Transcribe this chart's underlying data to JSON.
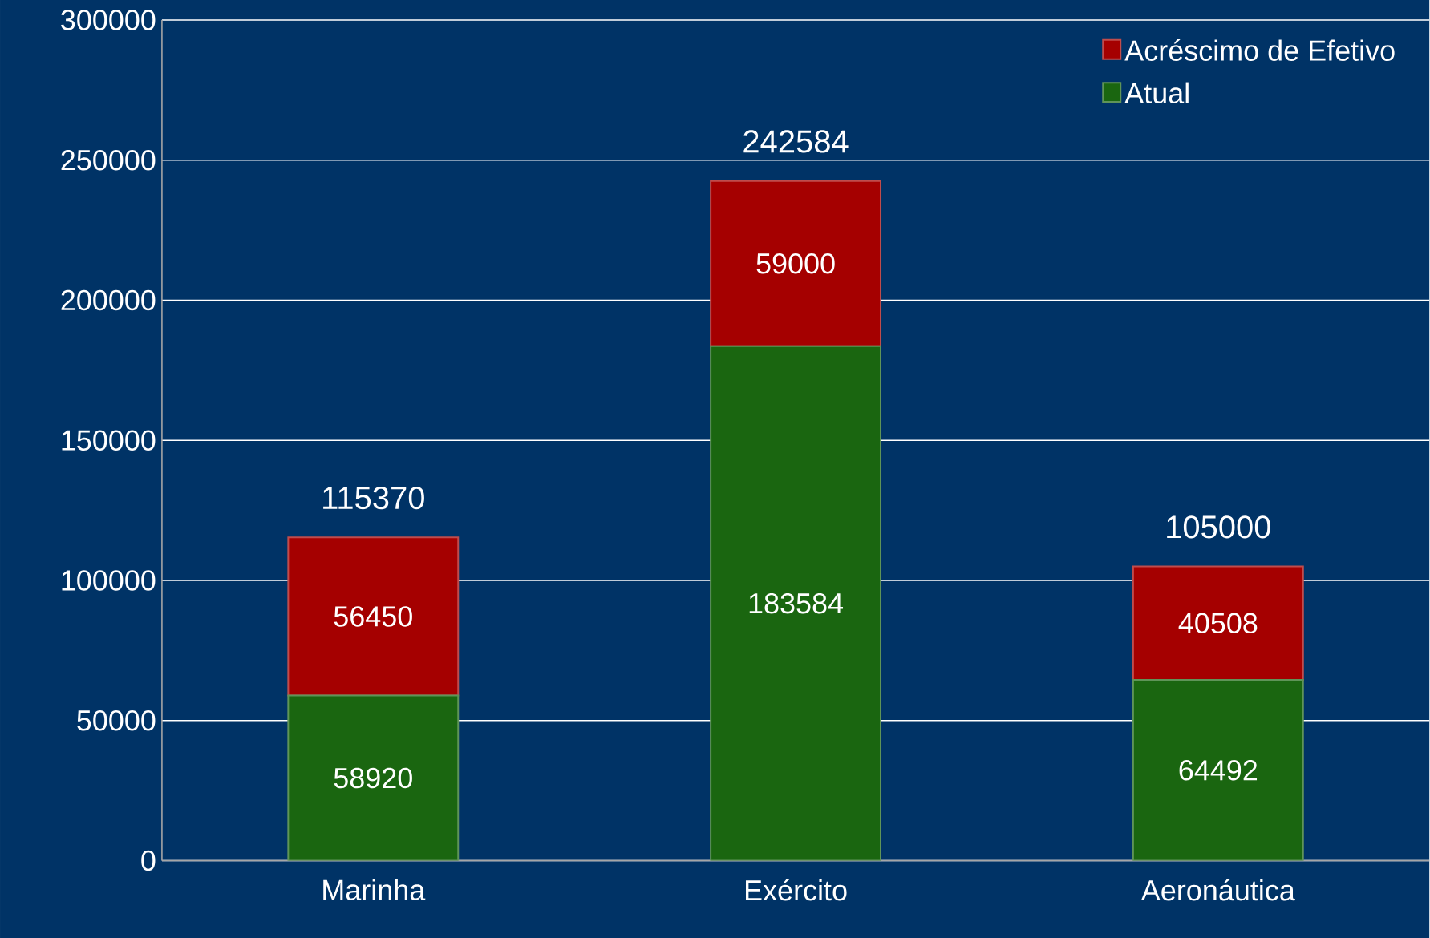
{
  "chart_data": {
    "type": "bar",
    "stacked": true,
    "categories": [
      "Marinha",
      "Exército",
      "Aeronáutica"
    ],
    "series": [
      {
        "name": "Atual",
        "color": "#1a6610",
        "values": [
          58920,
          183584,
          64492
        ]
      },
      {
        "name": "Acréscimo de Efetivo",
        "color": "#a50000",
        "values": [
          56450,
          59000,
          40508
        ]
      }
    ],
    "totals": [
      "115370",
      "242584",
      "105000"
    ],
    "data_labels": true,
    "ylim": [
      0,
      300000
    ],
    "yticks": [
      0,
      50000,
      100000,
      150000,
      200000,
      250000,
      300000
    ],
    "grid": "y",
    "legend": "top right"
  }
}
